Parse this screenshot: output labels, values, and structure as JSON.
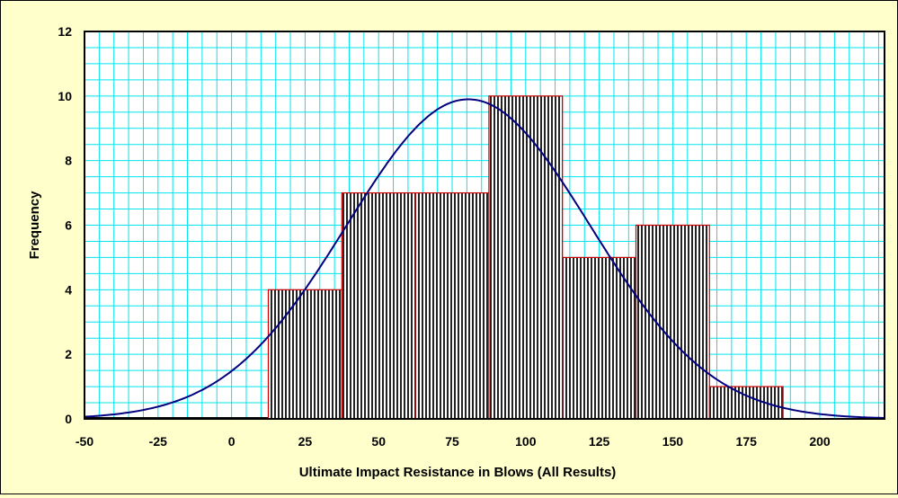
{
  "chart_data": {
    "type": "bar",
    "title": "",
    "xlabel": "Ultimate Impact Resistance in Blows (All Results)",
    "ylabel": "Frequency",
    "xlim": [
      -50,
      222
    ],
    "ylim": [
      0,
      12
    ],
    "x_ticks": [
      -50,
      -25,
      0,
      25,
      50,
      75,
      100,
      125,
      150,
      175,
      200
    ],
    "y_ticks": [
      0,
      2,
      4,
      6,
      8,
      10,
      12
    ],
    "grid": true,
    "legend": "none",
    "histogram": {
      "bin_width": 25,
      "bins": [
        {
          "x0": -50,
          "x1": -25,
          "count": 0
        },
        {
          "x0": -25,
          "x1": 0,
          "count": 0
        },
        {
          "x0": 0,
          "x1": 12.5,
          "count": 0
        },
        {
          "x0": 12.5,
          "x1": 37.5,
          "count": 4
        },
        {
          "x0": 37.5,
          "x1": 62.5,
          "count": 7
        },
        {
          "x0": 62.5,
          "x1": 87.5,
          "count": 7
        },
        {
          "x0": 87.5,
          "x1": 112.5,
          "count": 10
        },
        {
          "x0": 112.5,
          "x1": 137.5,
          "count": 5
        },
        {
          "x0": 137.5,
          "x1": 162.5,
          "count": 6
        },
        {
          "x0": 162.5,
          "x1": 187.5,
          "count": 1
        }
      ]
    },
    "normal_curve": {
      "mean": 80.5,
      "std": 41.3,
      "peak": 9.9,
      "x_range": [
        -50,
        222
      ]
    },
    "colors": {
      "plot_background": "#ffffff",
      "gridline": "#00e5ee",
      "bar_outline": "#cc0000",
      "bar_hatch": "#000000",
      "curve": "#000080",
      "chart_background": "#ffffcc"
    }
  }
}
